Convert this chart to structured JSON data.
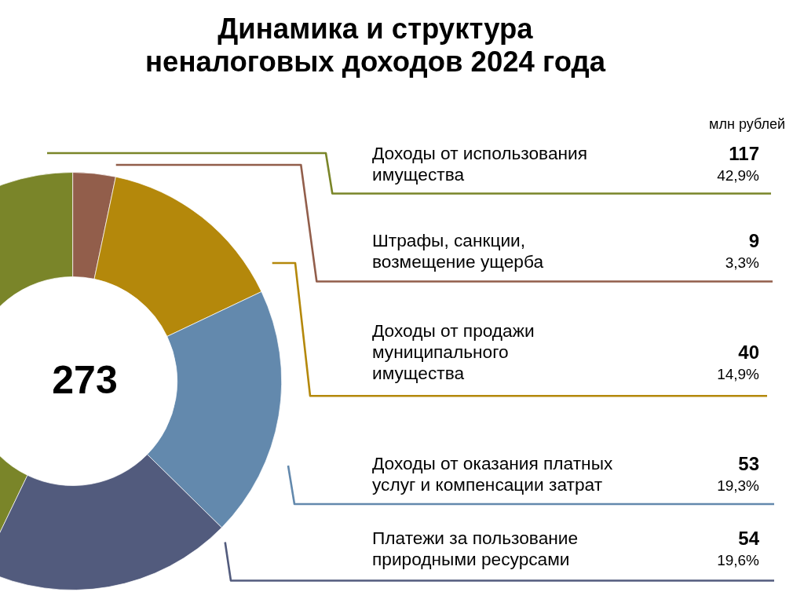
{
  "chart_data": {
    "type": "donut",
    "title": "Динамика и структура\nненалоговых доходов 2024 года",
    "categories": [
      "Доходы от использования\nимущества",
      "Штрафы, санкции,\nвозмещение ущерба",
      "Доходы от продажи\nмуниципального\nимущества",
      "Доходы от оказания платных\nуслуг и компенсации затрат",
      "Платежи за пользование\nприродными ресурсами"
    ],
    "values": [
      117,
      9,
      40,
      53,
      54
    ],
    "colors": [
      "#7a8529",
      "#925e4b",
      "#b4880b",
      "#6389ad",
      "#525b7d"
    ],
    "value_labels": [
      "117\n42,9%",
      "9\n3,3%",
      "40\n14,9%",
      "53\n19,3%",
      "54\n19,6%"
    ],
    "annotations": [
      "273",
      "млн рублей"
    ]
  }
}
